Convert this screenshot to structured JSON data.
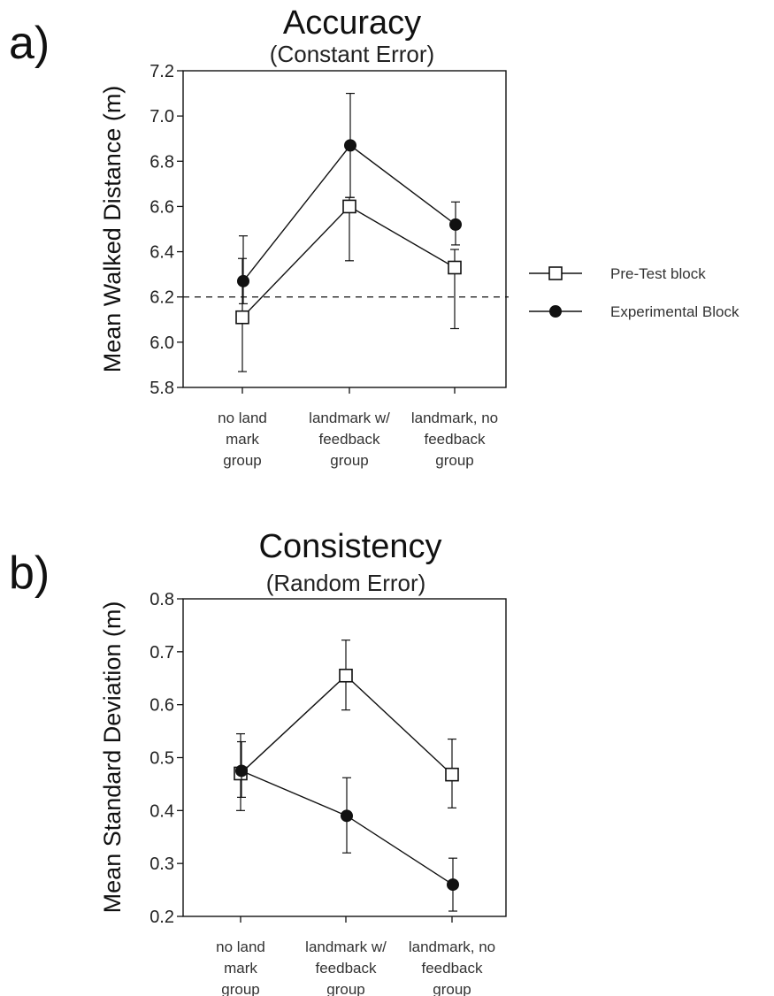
{
  "chart_data": [
    {
      "type": "line",
      "panel_label": "a)",
      "title": "Accuracy",
      "subtitle": "(Constant Error)",
      "xlabel": "",
      "ylabel": "Mean Walked Distance (m)",
      "ylim": [
        5.8,
        7.2
      ],
      "yticks": [
        "5.8",
        "6.0",
        "6.2",
        "6.4",
        "6.6",
        "6.8",
        "7.0",
        "7.2"
      ],
      "categories": [
        [
          "no land",
          "mark",
          "group"
        ],
        [
          "landmark w/",
          "feedback",
          "group"
        ],
        [
          "landmark, no",
          "feedback",
          "group"
        ]
      ],
      "reference_line": 6.2,
      "grid": false,
      "series": [
        {
          "name": "Pre-Test block",
          "marker": "open-square",
          "values": [
            6.11,
            6.6,
            6.33
          ],
          "err_low": [
            5.87,
            6.36,
            6.06
          ],
          "err_high": [
            6.37,
            6.64,
            6.41
          ]
        },
        {
          "name": "Experimental Block",
          "marker": "filled-circle",
          "values": [
            6.27,
            6.87,
            6.52
          ],
          "err_low": [
            6.17,
            6.64,
            6.43
          ],
          "err_high": [
            6.47,
            7.1,
            6.62
          ]
        }
      ]
    },
    {
      "type": "line",
      "panel_label": "b)",
      "title": "Consistency",
      "subtitle": "(Random Error)",
      "xlabel": "",
      "ylabel": "Mean Standard Deviation (m)",
      "ylim": [
        0.2,
        0.8
      ],
      "yticks": [
        "0.2",
        "0.3",
        "0.4",
        "0.5",
        "0.6",
        "0.7",
        "0.8"
      ],
      "categories": [
        [
          "no land",
          "mark",
          "group"
        ],
        [
          "landmark w/",
          "feedback",
          "group"
        ],
        [
          "landmark, no",
          "feedback",
          "group"
        ]
      ],
      "grid": false,
      "series": [
        {
          "name": "Pre-Test block",
          "marker": "open-square",
          "values": [
            0.47,
            0.655,
            0.468
          ],
          "err_low": [
            0.4,
            0.59,
            0.405
          ],
          "err_high": [
            0.545,
            0.722,
            0.535
          ]
        },
        {
          "name": "Experimental Block",
          "marker": "filled-circle",
          "values": [
            0.475,
            0.39,
            0.26
          ],
          "err_low": [
            0.425,
            0.32,
            0.21
          ],
          "err_high": [
            0.53,
            0.462,
            0.31
          ]
        }
      ]
    }
  ],
  "legend": {
    "placement": "right of panel a",
    "items": [
      {
        "label": "Pre-Test block",
        "marker": "open-square"
      },
      {
        "label": "Experimental Block",
        "marker": "filled-circle"
      }
    ]
  },
  "colors": {
    "ink": "#111111",
    "background": "#ffffff"
  }
}
